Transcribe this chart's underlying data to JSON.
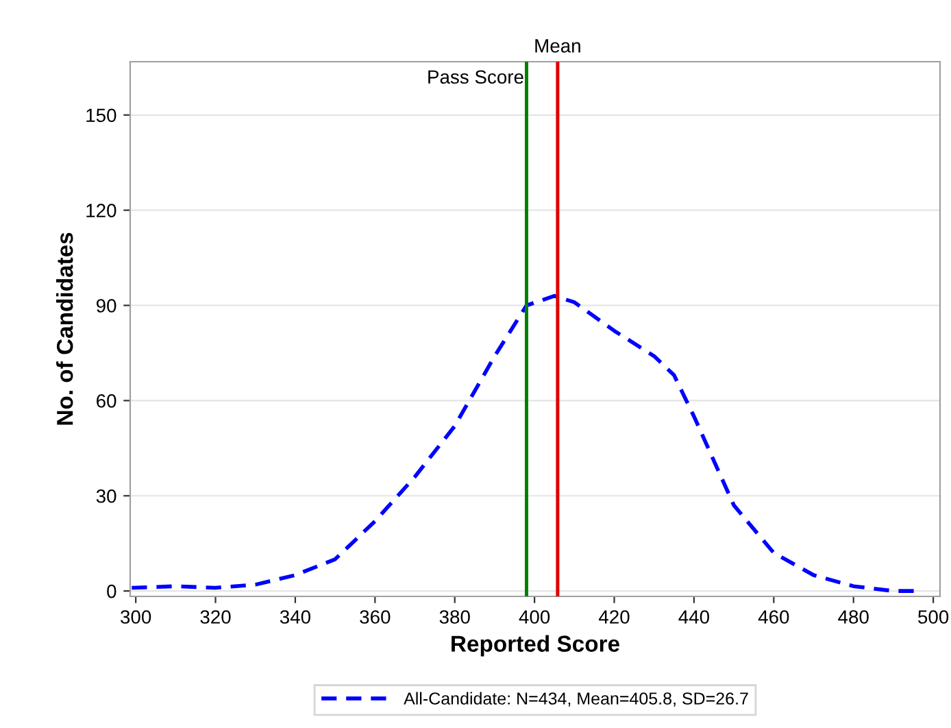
{
  "chart_data": {
    "type": "line",
    "xlabel": "Reported Score",
    "ylabel": "No. of Candidates",
    "series": [
      {
        "name": "All-Candidate: N=434, Mean=405.8, SD=26.7",
        "color": "#0000ff",
        "line_style": "dashed",
        "x": [
          299,
          310,
          320,
          330,
          340,
          350,
          360,
          370,
          380,
          390,
          398,
          405,
          410,
          420,
          430,
          435,
          440,
          450,
          460,
          470,
          480,
          490,
          496
        ],
        "values": [
          1,
          1.5,
          1,
          2,
          5,
          10,
          22,
          36,
          52,
          74,
          90,
          93,
          91,
          82,
          74,
          68,
          55,
          27,
          12,
          5,
          1.5,
          0,
          0
        ]
      }
    ],
    "xlim": [
      298.6,
      501.7
    ],
    "xticks": [
      300,
      320,
      340,
      360,
      380,
      400,
      420,
      440,
      460,
      480,
      500
    ],
    "ylim": [
      -1.7,
      166.8
    ],
    "yticks": [
      0,
      30,
      60,
      90,
      120,
      150
    ],
    "ref_lines": [
      {
        "axis": "x",
        "value": 398,
        "label": "Pass Score",
        "color": "#008000"
      },
      {
        "axis": "x",
        "value": 405.8,
        "label": "Mean",
        "color": "#e00000"
      }
    ],
    "grid": "y",
    "legend": "bottom",
    "marker": "none"
  }
}
